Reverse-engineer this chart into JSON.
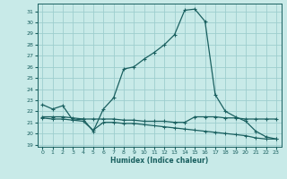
{
  "xlabel": "Humidex (Indice chaleur)",
  "ylabel": "",
  "bg_color": "#c8eae8",
  "grid_color": "#9ecece",
  "line_color": "#1a6060",
  "xlim": [
    -0.5,
    23.5
  ],
  "ylim": [
    18.8,
    31.7
  ],
  "yticks": [
    19,
    20,
    21,
    22,
    23,
    24,
    25,
    26,
    27,
    28,
    29,
    30,
    31
  ],
  "xticks": [
    0,
    1,
    2,
    3,
    4,
    5,
    6,
    7,
    8,
    9,
    10,
    11,
    12,
    13,
    14,
    15,
    16,
    17,
    18,
    19,
    20,
    21,
    22,
    23
  ],
  "curve1_x": [
    0,
    1,
    2,
    3,
    4,
    5,
    6,
    7,
    8,
    9,
    10,
    11,
    12,
    13,
    14,
    15,
    16,
    17,
    18,
    19,
    20,
    21,
    22,
    23
  ],
  "curve1_y": [
    22.6,
    22.2,
    22.5,
    21.2,
    21.3,
    20.2,
    22.2,
    23.2,
    25.8,
    26.0,
    26.7,
    27.3,
    28.0,
    28.9,
    31.1,
    31.2,
    30.1,
    23.5,
    22.0,
    21.5,
    21.1,
    20.2,
    19.7,
    19.5
  ],
  "curve2_x": [
    0,
    1,
    2,
    3,
    4,
    5,
    6,
    7,
    8,
    9,
    10,
    11,
    12,
    13,
    14,
    15,
    16,
    17,
    18,
    19,
    20,
    21,
    22,
    23
  ],
  "curve2_y": [
    21.5,
    21.5,
    21.5,
    21.4,
    21.3,
    21.3,
    21.3,
    21.3,
    21.2,
    21.2,
    21.1,
    21.1,
    21.1,
    21.0,
    21.0,
    21.5,
    21.5,
    21.5,
    21.4,
    21.4,
    21.3,
    21.3,
    21.3,
    21.3
  ],
  "curve3_x": [
    0,
    1,
    2,
    3,
    4,
    5,
    6,
    7,
    8,
    9,
    10,
    11,
    12,
    13,
    14,
    15,
    16,
    17,
    18,
    19,
    20,
    21,
    22,
    23
  ],
  "curve3_y": [
    21.4,
    21.3,
    21.3,
    21.2,
    21.1,
    20.3,
    21.0,
    21.0,
    20.9,
    20.9,
    20.8,
    20.7,
    20.6,
    20.5,
    20.4,
    20.3,
    20.2,
    20.1,
    20.0,
    19.9,
    19.8,
    19.6,
    19.5,
    19.5
  ]
}
